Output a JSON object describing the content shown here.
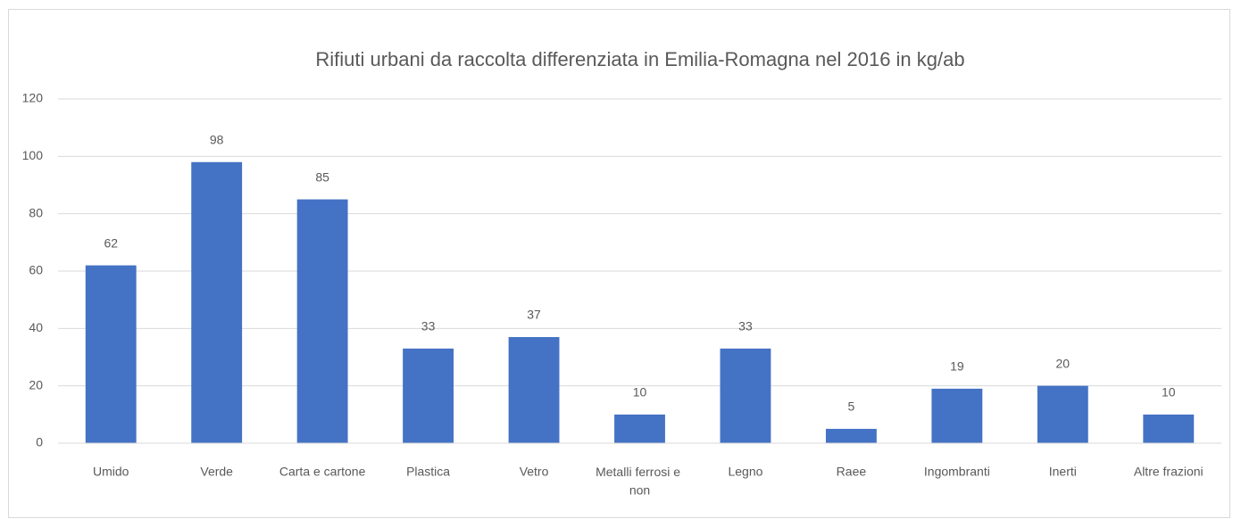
{
  "chart_data": {
    "type": "bar",
    "title": "Rifiuti urbani da raccolta differenziata in Emilia-Romagna nel 2016 in kg/ab",
    "categories": [
      "Umido",
      "Verde",
      "Carta e cartone",
      "Plastica",
      "Vetro",
      "Metalli ferrosi e non",
      "Legno",
      "Raee",
      "Ingombranti",
      "Inerti",
      "Altre frazioni"
    ],
    "values": [
      62,
      98,
      85,
      33,
      37,
      10,
      33,
      5,
      19,
      20,
      10
    ],
    "color": "#4472c4",
    "ylim": [
      0,
      120
    ],
    "yticks": [
      0,
      20,
      40,
      60,
      80,
      100,
      120
    ],
    "grid": true
  }
}
